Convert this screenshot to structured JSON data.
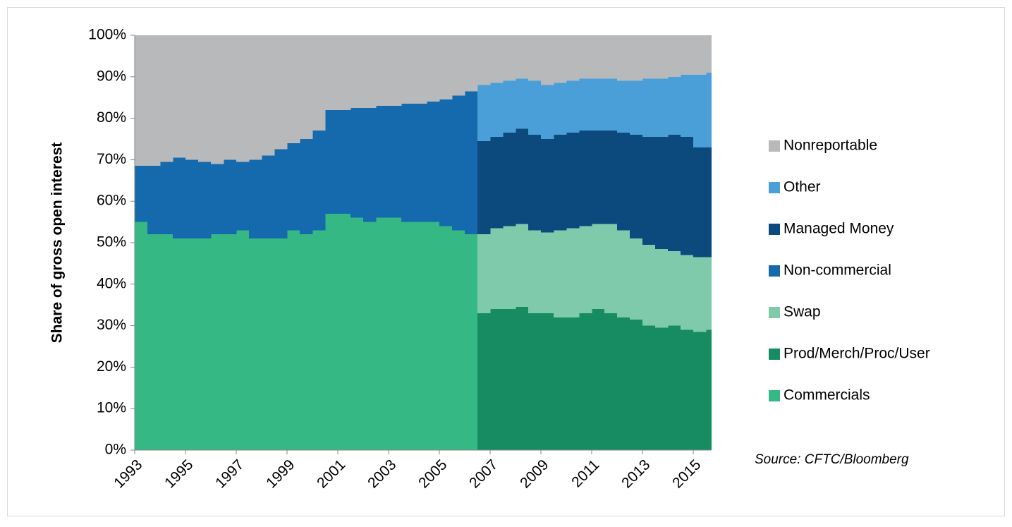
{
  "chart_data": {
    "type": "area",
    "y_label": "Share of gross open interest",
    "source": "Source: CFTC/Bloomberg",
    "x": [
      1993,
      1993.5,
      1994,
      1994.5,
      1995,
      1995.5,
      1996,
      1996.5,
      1997,
      1997.5,
      1998,
      1998.5,
      1999,
      1999.5,
      2000,
      2000.5,
      2001,
      2001.5,
      2002,
      2002.5,
      2003,
      2003.5,
      2004,
      2004.5,
      2005,
      2005.5,
      2006,
      2006.5,
      2007,
      2007.5,
      2008,
      2008.5,
      2009,
      2009.5,
      2010,
      2010.5,
      2011,
      2011.5,
      2012,
      2012.5,
      2013,
      2013.5,
      2014,
      2014.5,
      2015,
      2015.5
    ],
    "xlim": [
      1993,
      2015.7
    ],
    "xticks": [
      1993,
      1995,
      1997,
      1999,
      2001,
      2003,
      2005,
      2007,
      2009,
      2011,
      2013,
      2015
    ],
    "ylim": [
      0,
      100
    ],
    "yticks": [
      {
        "value": 0,
        "label": "0%"
      },
      {
        "value": 10,
        "label": "10%"
      },
      {
        "value": 20,
        "label": "20%"
      },
      {
        "value": 30,
        "label": "30%"
      },
      {
        "value": 40,
        "label": "40%"
      },
      {
        "value": 50,
        "label": "50%"
      },
      {
        "value": 60,
        "label": "60%"
      },
      {
        "value": 70,
        "label": "70%"
      },
      {
        "value": 80,
        "label": "80%"
      },
      {
        "value": 90,
        "label": "90%"
      },
      {
        "value": 100,
        "label": "100%"
      }
    ],
    "stacked": true,
    "series": [
      {
        "name": "Commercials",
        "color": "#35b884",
        "values": [
          55,
          52,
          52,
          51,
          51,
          51,
          52,
          52,
          53,
          51,
          51,
          51,
          53,
          52,
          53,
          57,
          57,
          56,
          55,
          56,
          56,
          55,
          55,
          55,
          54,
          53,
          52,
          null,
          null,
          null,
          null,
          null,
          null,
          null,
          null,
          null,
          null,
          null,
          null,
          null,
          null,
          null,
          null,
          null,
          null,
          null
        ]
      },
      {
        "name": "Prod/Merch/Proc/User",
        "color": "#178c63",
        "values": [
          null,
          null,
          null,
          null,
          null,
          null,
          null,
          null,
          null,
          null,
          null,
          null,
          null,
          null,
          null,
          null,
          null,
          null,
          null,
          null,
          null,
          null,
          null,
          null,
          null,
          null,
          null,
          33,
          34,
          34,
          34.5,
          33,
          33,
          32,
          32,
          33,
          34,
          33,
          32,
          31.5,
          30,
          29.5,
          30,
          29,
          28.5,
          29
        ]
      },
      {
        "name": "Swap",
        "color": "#7fcaab",
        "values": [
          null,
          null,
          null,
          null,
          null,
          null,
          null,
          null,
          null,
          null,
          null,
          null,
          null,
          null,
          null,
          null,
          null,
          null,
          null,
          null,
          null,
          null,
          null,
          null,
          null,
          null,
          null,
          19,
          19.5,
          20,
          20,
          20,
          19.5,
          21,
          21.5,
          21,
          20.5,
          21.5,
          21,
          19.5,
          19.5,
          19,
          18,
          18,
          18,
          17.5
        ]
      },
      {
        "name": "Non-commercial",
        "color": "#1569ad",
        "values": [
          13.5,
          16.5,
          17.5,
          19.5,
          19,
          18.5,
          17,
          18,
          16.5,
          19,
          20,
          21.5,
          21,
          23,
          24,
          25,
          25,
          26.5,
          27.5,
          27,
          27,
          28.5,
          28.5,
          29,
          30.5,
          32.5,
          34.5,
          null,
          null,
          null,
          null,
          null,
          null,
          null,
          null,
          null,
          null,
          null,
          null,
          null,
          null,
          null,
          null,
          null,
          null,
          null
        ]
      },
      {
        "name": "Managed Money",
        "color": "#0c4a7d",
        "values": [
          null,
          null,
          null,
          null,
          null,
          null,
          null,
          null,
          null,
          null,
          null,
          null,
          null,
          null,
          null,
          null,
          null,
          null,
          null,
          null,
          null,
          null,
          null,
          null,
          null,
          null,
          null,
          22.5,
          22,
          22.5,
          23,
          23,
          22.5,
          23,
          23,
          23,
          22.5,
          22.5,
          23.5,
          25,
          26,
          27,
          28,
          28.5,
          26.5,
          26.5
        ]
      },
      {
        "name": "Other",
        "color": "#4a9fd8",
        "values": [
          null,
          null,
          null,
          null,
          null,
          null,
          null,
          null,
          null,
          null,
          null,
          null,
          null,
          null,
          null,
          null,
          null,
          null,
          null,
          null,
          null,
          null,
          null,
          null,
          null,
          null,
          null,
          13.5,
          13,
          12.5,
          12,
          13,
          13,
          12.5,
          12.5,
          12.5,
          12.5,
          12.5,
          12.5,
          13,
          14,
          14,
          14,
          15,
          17.5,
          18
        ]
      },
      {
        "name": "Nonreportable",
        "color": "#b8b9bb",
        "values": [
          31.5,
          31.5,
          30.5,
          29.5,
          30,
          30.5,
          31,
          30,
          30.5,
          30,
          29,
          27.5,
          26,
          25,
          23,
          18,
          18,
          17.5,
          17.5,
          17,
          17,
          16.5,
          16.5,
          16,
          15.5,
          14.5,
          13.5,
          12,
          11.5,
          11,
          10.5,
          11,
          12,
          11.5,
          11,
          10.5,
          10.5,
          10.5,
          11,
          11,
          10.5,
          10.5,
          10,
          9.5,
          9.5,
          9
        ]
      }
    ]
  }
}
